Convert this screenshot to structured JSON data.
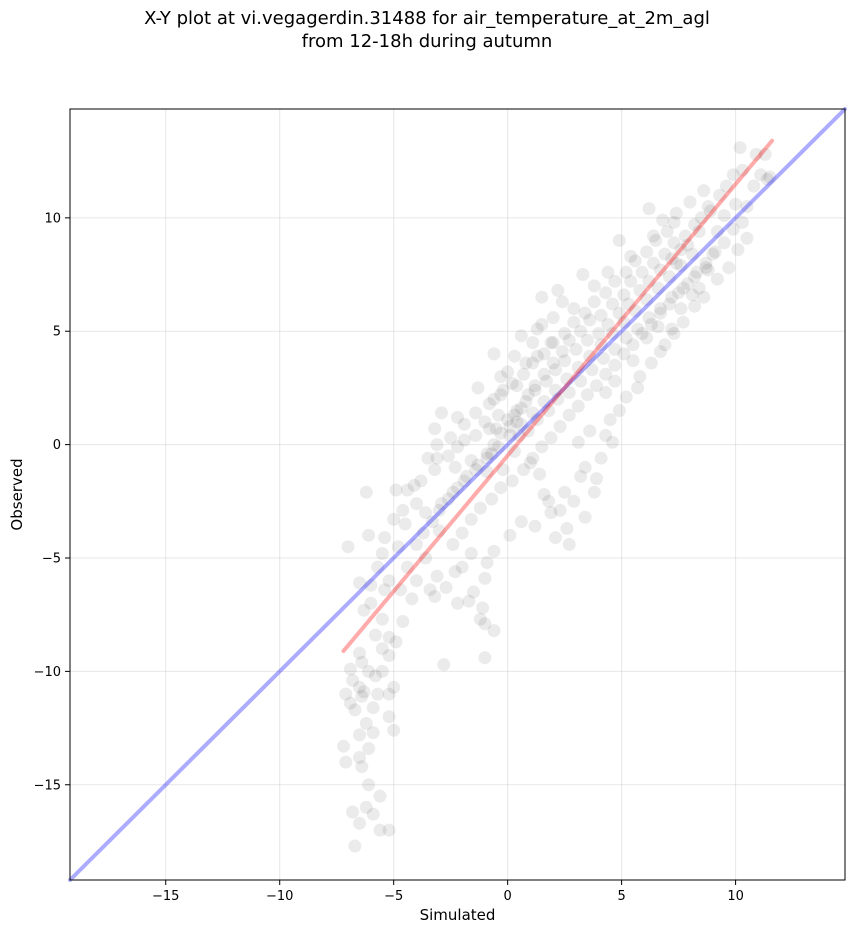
{
  "title": {
    "line1": "X-Y plot at vi.vegagerdin.31488 for air_temperature_at_2m_agl",
    "line2": "from 12-18h during autumn"
  },
  "chart_data": {
    "type": "scatter",
    "title": "X-Y plot at vi.vegagerdin.31488 for air_temperature_at_2m_agl from 12-18h during autumn",
    "xlabel": "Simulated",
    "ylabel": "Observed",
    "xlim": [
      -19.2,
      14.8
    ],
    "ylim": [
      -19.2,
      14.8
    ],
    "xticks": [
      -15,
      -10,
      -5,
      0,
      5,
      10
    ],
    "yticks": [
      -15,
      -10,
      -5,
      0,
      5,
      10
    ],
    "xtick_labels": [
      "−15",
      "−10",
      "−5",
      "0",
      "5",
      "10"
    ],
    "ytick_labels": [
      "−15",
      "−10",
      "−5",
      "0",
      "5",
      "10"
    ],
    "grid": true,
    "point_color": "#000000",
    "point_alpha": 0.08,
    "points": [
      [
        -6.7,
        -17.7
      ],
      [
        -6.5,
        -16.7
      ],
      [
        -6.8,
        -16.2
      ],
      [
        -5.6,
        -17.0
      ],
      [
        -5.2,
        -17.0
      ],
      [
        -5.9,
        -16.3
      ],
      [
        -6.2,
        -16.0
      ],
      [
        -5.6,
        -15.5
      ],
      [
        -6.1,
        -15.0
      ],
      [
        -7.1,
        -14.0
      ],
      [
        -6.4,
        -14.2
      ],
      [
        -6.5,
        -13.8
      ],
      [
        -7.2,
        -13.3
      ],
      [
        -6.1,
        -13.4
      ],
      [
        -5.9,
        -12.7
      ],
      [
        -6.2,
        -12.3
      ],
      [
        -6.5,
        -12.8
      ],
      [
        -5.0,
        -12.6
      ],
      [
        -6.7,
        -11.7
      ],
      [
        -6.9,
        -11.4
      ],
      [
        -5.2,
        -12.0
      ],
      [
        -7.1,
        -11.0
      ],
      [
        -6.4,
        -11.1
      ],
      [
        -5.7,
        -11.0
      ],
      [
        -5.2,
        -11.0
      ],
      [
        -5.9,
        -11.6
      ],
      [
        -6.5,
        -10.7
      ],
      [
        -6.8,
        -10.4
      ],
      [
        -6.1,
        -10.0
      ],
      [
        -6.4,
        -9.6
      ],
      [
        -6.3,
        -10.9
      ],
      [
        -5.8,
        -10.2
      ],
      [
        -5.0,
        -10.7
      ],
      [
        -5.5,
        -10.0
      ],
      [
        -6.5,
        -9.2
      ],
      [
        -6.9,
        -9.9
      ],
      [
        -5.2,
        -9.3
      ],
      [
        -4.9,
        -8.7
      ],
      [
        -5.2,
        -8.5
      ],
      [
        -5.5,
        -9.0
      ],
      [
        -5.8,
        -8.4
      ],
      [
        -6.3,
        -7.3
      ],
      [
        -5.5,
        -7.7
      ],
      [
        -6.0,
        -7.0
      ],
      [
        -4.6,
        -7.8
      ],
      [
        -4.2,
        -6.8
      ],
      [
        -4.7,
        -6.4
      ],
      [
        -5.4,
        -6.4
      ],
      [
        -6.0,
        -6.2
      ],
      [
        -6.5,
        -6.1
      ],
      [
        -5.2,
        -6.0
      ],
      [
        -5.7,
        -5.4
      ],
      [
        -7.0,
        -4.5
      ],
      [
        -6.1,
        -4.0
      ],
      [
        -5.4,
        -4.1
      ],
      [
        -5.5,
        -4.8
      ],
      [
        -4.8,
        -4.5
      ],
      [
        -4.4,
        -5.4
      ],
      [
        -4.0,
        -6.0
      ],
      [
        -3.2,
        -6.7
      ],
      [
        -3.4,
        -6.4
      ],
      [
        -2.7,
        -6.3
      ],
      [
        -2.2,
        -7.0
      ],
      [
        -1.7,
        -6.9
      ],
      [
        -1.2,
        -7.7
      ],
      [
        -1.0,
        -7.9
      ],
      [
        -0.6,
        -8.2
      ],
      [
        -1.0,
        -9.4
      ],
      [
        -2.8,
        -9.7
      ],
      [
        -1.1,
        -7.2
      ],
      [
        -1.5,
        -6.5
      ],
      [
        -1.0,
        -5.9
      ],
      [
        -0.9,
        -5.2
      ],
      [
        -2.0,
        -5.4
      ],
      [
        -2.3,
        -5.6
      ],
      [
        -3.1,
        -5.8
      ],
      [
        -3.6,
        -5.0
      ],
      [
        -4.5,
        -3.5
      ],
      [
        -5.0,
        -3.3
      ],
      [
        -6.2,
        -2.1
      ],
      [
        -4.4,
        -2.0
      ],
      [
        -4.0,
        -2.6
      ],
      [
        -3.6,
        -3.0
      ],
      [
        -4.9,
        -2.0
      ],
      [
        -3.8,
        -1.6
      ],
      [
        -3.2,
        -1.1
      ],
      [
        -3.1,
        -0.6
      ],
      [
        -2.6,
        -0.5
      ],
      [
        -2.2,
        -0.1
      ],
      [
        -3.1,
        0.0
      ],
      [
        -1.9,
        0.2
      ],
      [
        -1.4,
        0.4
      ],
      [
        -0.8,
        0.7
      ],
      [
        -1.0,
        1.0
      ],
      [
        -0.4,
        1.3
      ],
      [
        -0.6,
        2.0
      ],
      [
        -0.2,
        2.4
      ],
      [
        0.4,
        2.6
      ],
      [
        -0.3,
        3.0
      ],
      [
        0.0,
        3.2
      ],
      [
        -0.6,
        4.0
      ],
      [
        0.8,
        3.6
      ],
      [
        0.6,
        4.8
      ],
      [
        1.3,
        3.9
      ],
      [
        1.1,
        4.5
      ],
      [
        1.5,
        5.3
      ],
      [
        1.5,
        6.5
      ],
      [
        2.2,
        6.8
      ],
      [
        -3.2,
        0.7
      ],
      [
        -2.5,
        0.3
      ],
      [
        -2.3,
        -1.0
      ],
      [
        -1.6,
        -0.7
      ],
      [
        -0.9,
        -1.2
      ],
      [
        -0.2,
        -1.1
      ],
      [
        -0.7,
        -0.4
      ],
      [
        0.3,
        -0.3
      ],
      [
        0.5,
        0.4
      ],
      [
        1.0,
        -0.8
      ],
      [
        1.4,
        -1.3
      ],
      [
        1.6,
        -2.2
      ],
      [
        1.8,
        -2.5
      ],
      [
        2.3,
        -2.9
      ],
      [
        2.9,
        -2.5
      ],
      [
        2.6,
        -3.7
      ],
      [
        2.1,
        -4.1
      ],
      [
        2.7,
        -4.4
      ],
      [
        3.4,
        -3.2
      ],
      [
        3.8,
        -2.1
      ],
      [
        3.9,
        -1.5
      ],
      [
        3.4,
        -1.0
      ],
      [
        3.1,
        0.1
      ],
      [
        3.6,
        0.6
      ],
      [
        4.3,
        0.4
      ],
      [
        4.6,
        0.1
      ],
      [
        4.9,
        1.5
      ],
      [
        4.3,
        2.3
      ],
      [
        4.7,
        2.8
      ],
      [
        5.5,
        3.7
      ],
      [
        5.8,
        3.0
      ],
      [
        6.1,
        4.7
      ],
      [
        6.6,
        5.2
      ],
      [
        6.9,
        4.4
      ],
      [
        7.3,
        4.9
      ],
      [
        7.6,
        6.0
      ],
      [
        8.1,
        6.6
      ],
      [
        8.4,
        6.9
      ],
      [
        8.8,
        7.7
      ],
      [
        9.0,
        8.4
      ],
      [
        9.5,
        8.9
      ],
      [
        9.9,
        9.5
      ],
      [
        10.3,
        9.8
      ],
      [
        10.5,
        10.5
      ],
      [
        10.8,
        11.4
      ],
      [
        11.1,
        11.9
      ],
      [
        10.9,
        12.8
      ],
      [
        11.3,
        12.8
      ],
      [
        11.5,
        11.8
      ],
      [
        10.2,
        13.1
      ],
      [
        9.3,
        11.0
      ],
      [
        8.8,
        10.5
      ],
      [
        8.5,
        10.0
      ],
      [
        8.2,
        9.7
      ],
      [
        7.8,
        9.2
      ],
      [
        7.3,
        8.9
      ],
      [
        6.9,
        8.4
      ],
      [
        6.4,
        8.0
      ],
      [
        5.9,
        7.6
      ],
      [
        5.4,
        7.2
      ],
      [
        5.1,
        6.6
      ],
      [
        4.6,
        6.2
      ],
      [
        4.1,
        5.7
      ],
      [
        3.6,
        5.5
      ],
      [
        3.2,
        5.0
      ],
      [
        2.7,
        4.6
      ],
      [
        2.4,
        4.1
      ],
      [
        2.0,
        3.6
      ],
      [
        1.6,
        3.1
      ],
      [
        1.2,
        2.6
      ],
      [
        0.9,
        2.2
      ],
      [
        0.6,
        1.6
      ],
      [
        0.3,
        1.3
      ],
      [
        0.1,
        0.8
      ],
      [
        -0.3,
        0.5
      ],
      [
        -0.6,
        0.0
      ],
      [
        -0.9,
        -0.4
      ],
      [
        -1.3,
        -0.9
      ],
      [
        -1.8,
        -1.4
      ],
      [
        -2.2,
        -1.9
      ],
      [
        -2.6,
        -2.4
      ],
      [
        -3.0,
        -2.9
      ],
      [
        -3.3,
        -3.4
      ],
      [
        -3.7,
        -3.9
      ],
      [
        -4.0,
        -4.4
      ],
      [
        -2.0,
        -3.9
      ],
      [
        -1.6,
        -3.3
      ],
      [
        -1.2,
        -2.8
      ],
      [
        -0.7,
        -2.4
      ],
      [
        -0.3,
        -1.9
      ],
      [
        0.2,
        -1.6
      ],
      [
        0.7,
        -1.1
      ],
      [
        1.1,
        -0.6
      ],
      [
        1.5,
        -0.1
      ],
      [
        1.9,
        0.3
      ],
      [
        2.3,
        0.8
      ],
      [
        2.7,
        1.3
      ],
      [
        3.1,
        1.7
      ],
      [
        3.5,
        2.2
      ],
      [
        3.9,
        2.6
      ],
      [
        4.3,
        3.1
      ],
      [
        4.7,
        3.5
      ],
      [
        5.1,
        4.0
      ],
      [
        5.5,
        4.4
      ],
      [
        5.9,
        4.9
      ],
      [
        6.3,
        5.3
      ],
      [
        6.7,
        5.8
      ],
      [
        7.1,
        6.2
      ],
      [
        7.5,
        6.7
      ],
      [
        7.9,
        7.1
      ],
      [
        8.3,
        7.6
      ],
      [
        8.7,
        8.0
      ],
      [
        9.1,
        8.5
      ],
      [
        -1.4,
        1.4
      ],
      [
        -0.8,
        1.8
      ],
      [
        -0.3,
        2.2
      ],
      [
        0.2,
        2.7
      ],
      [
        0.7,
        3.1
      ],
      [
        1.1,
        3.6
      ],
      [
        1.6,
        4.0
      ],
      [
        2.0,
        4.5
      ],
      [
        2.5,
        4.9
      ],
      [
        2.9,
        5.4
      ],
      [
        3.4,
        5.8
      ],
      [
        3.8,
        6.3
      ],
      [
        4.3,
        6.7
      ],
      [
        4.7,
        7.2
      ],
      [
        5.2,
        7.6
      ],
      [
        5.6,
        8.1
      ],
      [
        6.1,
        8.5
      ],
      [
        6.5,
        9.0
      ],
      [
        7.0,
        9.4
      ],
      [
        6.2,
        10.4
      ],
      [
        6.8,
        9.9
      ],
      [
        7.4,
        10.2
      ],
      [
        8.0,
        10.7
      ],
      [
        8.6,
        11.2
      ],
      [
        4.9,
        9.0
      ],
      [
        3.3,
        7.5
      ],
      [
        2.4,
        6.3
      ],
      [
        1.3,
        5.1
      ],
      [
        2.0,
        5.6
      ],
      [
        0.3,
        3.9
      ],
      [
        -1.3,
        2.5
      ],
      [
        -2.2,
        1.2
      ],
      [
        -2.9,
        1.4
      ],
      [
        -1.9,
        0.9
      ],
      [
        -3.5,
        -0.6
      ],
      [
        -4.1,
        -1.8
      ],
      [
        -4.6,
        -2.9
      ],
      [
        -3.0,
        -3.8
      ],
      [
        -2.4,
        -4.4
      ],
      [
        -1.6,
        -4.8
      ],
      [
        -0.6,
        -4.7
      ],
      [
        0.1,
        -4.0
      ],
      [
        0.6,
        -3.4
      ],
      [
        1.2,
        -3.6
      ],
      [
        1.9,
        -3.0
      ],
      [
        2.5,
        -2.1
      ],
      [
        3.2,
        -1.4
      ],
      [
        4.1,
        -0.6
      ],
      [
        4.5,
        1.1
      ],
      [
        5.2,
        2.1
      ],
      [
        5.7,
        2.5
      ],
      [
        6.3,
        3.6
      ],
      [
        6.7,
        4.1
      ],
      [
        7.2,
        5.1
      ],
      [
        7.7,
        5.4
      ],
      [
        8.2,
        6.1
      ],
      [
        8.6,
        6.5
      ],
      [
        9.2,
        7.3
      ],
      [
        9.7,
        7.8
      ],
      [
        10.1,
        8.6
      ],
      [
        10.5,
        9.1
      ],
      [
        10.0,
        10.6
      ],
      [
        9.5,
        10.1
      ],
      [
        9.2,
        9.4
      ],
      [
        8.1,
        8.4
      ],
      [
        7.6,
        7.9
      ],
      [
        7.1,
        7.4
      ],
      [
        6.6,
        6.9
      ],
      [
        6.1,
        6.4
      ],
      [
        5.6,
        5.9
      ],
      [
        5.1,
        5.4
      ],
      [
        4.6,
        4.9
      ],
      [
        4.1,
        4.4
      ],
      [
        3.6,
        3.9
      ],
      [
        3.1,
        3.4
      ],
      [
        2.6,
        2.9
      ],
      [
        2.1,
        2.4
      ],
      [
        1.6,
        1.9
      ],
      [
        1.1,
        1.4
      ],
      [
        0.6,
        0.9
      ],
      [
        0.1,
        0.4
      ],
      [
        -0.4,
        -0.1
      ],
      [
        -0.9,
        -0.6
      ],
      [
        -1.4,
        -1.1
      ],
      [
        -1.9,
        -1.6
      ],
      [
        -2.4,
        -2.1
      ],
      [
        -2.9,
        -2.6
      ],
      [
        0.4,
        1.0
      ],
      [
        0.9,
        0.6
      ],
      [
        1.3,
        1.1
      ],
      [
        1.8,
        1.5
      ],
      [
        2.2,
        2.0
      ],
      [
        2.7,
        2.3
      ],
      [
        3.2,
        2.8
      ],
      [
        3.7,
        3.3
      ],
      [
        4.2,
        3.8
      ],
      [
        4.7,
        4.2
      ],
      [
        5.2,
        4.7
      ],
      [
        5.7,
        5.1
      ],
      [
        6.2,
        5.6
      ],
      [
        6.7,
        6.0
      ],
      [
        7.2,
        6.5
      ],
      [
        7.7,
        6.9
      ],
      [
        8.2,
        7.4
      ],
      [
        8.7,
        7.8
      ],
      [
        4.0,
        4.9
      ],
      [
        3.5,
        4.6
      ],
      [
        4.4,
        5.3
      ],
      [
        4.9,
        5.8
      ],
      [
        5.3,
        6.2
      ],
      [
        5.8,
        6.8
      ],
      [
        6.2,
        7.2
      ],
      [
        6.7,
        7.7
      ],
      [
        7.2,
        8.2
      ],
      [
        7.6,
        8.6
      ],
      [
        3.0,
        4.2
      ],
      [
        2.5,
        3.7
      ],
      [
        2.1,
        3.3
      ],
      [
        1.7,
        2.8
      ],
      [
        1.2,
        2.4
      ],
      [
        0.8,
        1.9
      ],
      [
        0.4,
        1.5
      ],
      [
        0.0,
        1.1
      ],
      [
        -0.5,
        0.7
      ],
      [
        1.9,
        4.5
      ],
      [
        2.9,
        6.0
      ],
      [
        3.8,
        7.0
      ],
      [
        4.4,
        7.6
      ],
      [
        5.4,
        8.3
      ],
      [
        6.4,
        9.2
      ],
      [
        7.3,
        9.8
      ],
      [
        8.9,
        10.3
      ],
      [
        9.6,
        11.4
      ],
      [
        10.3,
        12.1
      ],
      [
        11.4,
        11.7
      ],
      [
        9.9,
        11.9
      ],
      [
        8.4,
        9.4
      ],
      [
        7.9,
        8.8
      ],
      [
        7.4,
        8.0
      ]
    ],
    "series": [
      {
        "name": "",
        "kind": "reference",
        "color": "#0000ff",
        "alpha": 0.33,
        "x": [
          -19.2,
          14.8
        ],
        "y": [
          -19.2,
          14.8
        ]
      },
      {
        "name": "",
        "kind": "fit",
        "color": "#ff0000",
        "alpha": 0.33,
        "x": [
          -7.2,
          11.6
        ],
        "y": [
          -9.1,
          13.4
        ]
      }
    ]
  }
}
